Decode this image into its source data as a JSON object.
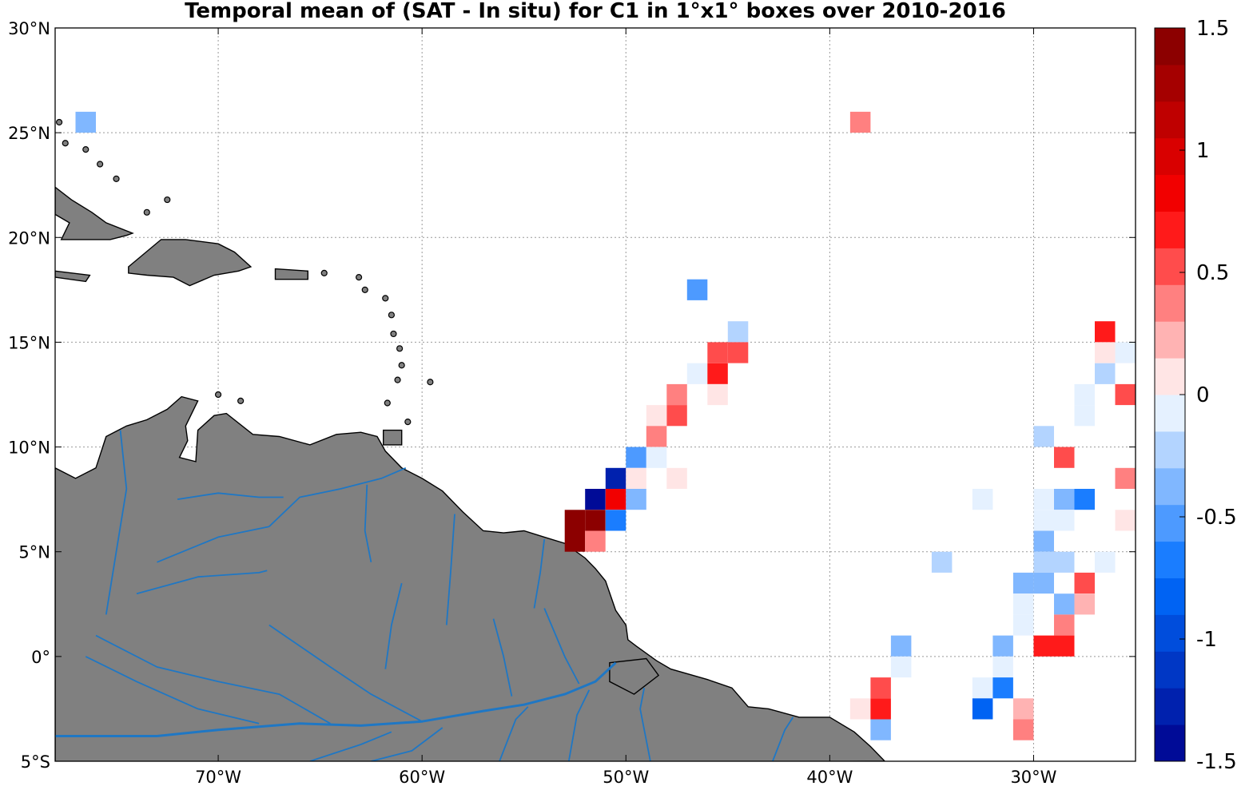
{
  "title": "Temporal mean of (SAT - In situ) for C1 in 1°x1° boxes over 2010-2016",
  "map": {
    "lon_range": [
      -78,
      -25
    ],
    "lat_range": [
      -5,
      30
    ],
    "lat_ticks": [
      {
        "value": 30,
        "label": "30°N"
      },
      {
        "value": 25,
        "label": "25°N"
      },
      {
        "value": 20,
        "label": "20°N"
      },
      {
        "value": 15,
        "label": "15°N"
      },
      {
        "value": 10,
        "label": "10°N"
      },
      {
        "value": 5,
        "label": "5°N"
      },
      {
        "value": 0,
        "label": "0°"
      },
      {
        "value": -5,
        "label": "5°S"
      }
    ],
    "lon_ticks": [
      {
        "value": -70,
        "label": "70°W"
      },
      {
        "value": -60,
        "label": "60°W"
      },
      {
        "value": -50,
        "label": "50°W"
      },
      {
        "value": -40,
        "label": "40°W"
      },
      {
        "value": -30,
        "label": "30°W"
      }
    ],
    "grid": true,
    "land_color": "#808080",
    "river_color": "#1f77c4",
    "coast_color": "#000000"
  },
  "colorbar": {
    "min": -1.5,
    "max": 1.5,
    "ticks": [
      {
        "value": 1.5,
        "label": "1.5"
      },
      {
        "value": 1,
        "label": "1"
      },
      {
        "value": 0.5,
        "label": "0.5"
      },
      {
        "value": 0,
        "label": "0"
      },
      {
        "value": -0.5,
        "label": "-0.5"
      },
      {
        "value": -1,
        "label": "-1"
      },
      {
        "value": -1.5,
        "label": "-1.5"
      }
    ],
    "negative_extreme_color": "#00008b",
    "positive_extreme_color": "#7f0000"
  },
  "chart_data": {
    "type": "heatmap",
    "cell_size_deg": 1,
    "cells": [
      {
        "lon": -77,
        "lat": 25,
        "v": -0.4
      },
      {
        "lon": -39,
        "lat": 25,
        "v": 0.3
      },
      {
        "lon": -47,
        "lat": 17,
        "v": -0.6
      },
      {
        "lon": -45,
        "lat": 15,
        "v": -0.2
      },
      {
        "lon": -46,
        "lat": 14,
        "v": 0.5
      },
      {
        "lon": -45,
        "lat": 14,
        "v": 0.5
      },
      {
        "lon": -47,
        "lat": 13,
        "v": -0.1
      },
      {
        "lon": -46,
        "lat": 13,
        "v": 0.6
      },
      {
        "lon": -46,
        "lat": 12,
        "v": 0.15
      },
      {
        "lon": -48,
        "lat": 12,
        "v": 0.3
      },
      {
        "lon": -48,
        "lat": 11,
        "v": 0.5
      },
      {
        "lon": -49,
        "lat": 11,
        "v": 0.15
      },
      {
        "lon": -49,
        "lat": 10,
        "v": 0.35
      },
      {
        "lon": -50,
        "lat": 9,
        "v": -0.5
      },
      {
        "lon": -49,
        "lat": 9,
        "v": -0.1
      },
      {
        "lon": -51,
        "lat": 8,
        "v": -1.3
      },
      {
        "lon": -50,
        "lat": 8,
        "v": 0.15
      },
      {
        "lon": -48,
        "lat": 8,
        "v": 0.15
      },
      {
        "lon": -52,
        "lat": 7,
        "v": -1.5
      },
      {
        "lon": -51,
        "lat": 7,
        "v": 0.8
      },
      {
        "lon": -50,
        "lat": 7,
        "v": -0.45
      },
      {
        "lon": -53,
        "lat": 6,
        "v": 1.5
      },
      {
        "lon": -52,
        "lat": 6,
        "v": 1.5
      },
      {
        "lon": -51,
        "lat": 6,
        "v": -0.75
      },
      {
        "lon": -53,
        "lat": 5,
        "v": 1.5
      },
      {
        "lon": -52,
        "lat": 5,
        "v": 0.4
      },
      {
        "lon": -35,
        "lat": 4,
        "v": -0.2
      },
      {
        "lon": -27,
        "lat": 15,
        "v": 0.65
      },
      {
        "lon": -27,
        "lat": 14,
        "v": 0.15
      },
      {
        "lon": -26,
        "lat": 14,
        "v": -0.1
      },
      {
        "lon": -27,
        "lat": 13,
        "v": -0.25
      },
      {
        "lon": -28,
        "lat": 12,
        "v": -0.1
      },
      {
        "lon": -26,
        "lat": 12,
        "v": 0.55
      },
      {
        "lon": -28,
        "lat": 11,
        "v": -0.1
      },
      {
        "lon": -30,
        "lat": 10,
        "v": -0.2
      },
      {
        "lon": -29,
        "lat": 9,
        "v": 0.55
      },
      {
        "lon": -26,
        "lat": 8,
        "v": 0.3
      },
      {
        "lon": -33,
        "lat": 7,
        "v": -0.1
      },
      {
        "lon": -30,
        "lat": 7,
        "v": -0.1
      },
      {
        "lon": -29,
        "lat": 7,
        "v": -0.3
      },
      {
        "lon": -28,
        "lat": 7,
        "v": -0.7
      },
      {
        "lon": -30,
        "lat": 6,
        "v": -0.1
      },
      {
        "lon": -29,
        "lat": 6,
        "v": -0.1
      },
      {
        "lon": -26,
        "lat": 6,
        "v": 0.15
      },
      {
        "lon": -30,
        "lat": 5,
        "v": -0.45
      },
      {
        "lon": -30,
        "lat": 4,
        "v": -0.2
      },
      {
        "lon": -29,
        "lat": 4,
        "v": -0.2
      },
      {
        "lon": -27,
        "lat": 4,
        "v": -0.1
      },
      {
        "lon": -31,
        "lat": 3,
        "v": -0.45
      },
      {
        "lon": -30,
        "lat": 3,
        "v": -0.45
      },
      {
        "lon": -28,
        "lat": 3,
        "v": 0.55
      },
      {
        "lon": -31,
        "lat": 2,
        "v": -0.1
      },
      {
        "lon": -29,
        "lat": 2,
        "v": -0.3
      },
      {
        "lon": -28,
        "lat": 2,
        "v": 0.2
      },
      {
        "lon": -31,
        "lat": 1,
        "v": -0.1
      },
      {
        "lon": -29,
        "lat": 1,
        "v": 0.3
      },
      {
        "lon": -30,
        "lat": 0,
        "v": 0.65
      },
      {
        "lon": -29,
        "lat": 0,
        "v": 0.65
      },
      {
        "lon": -37,
        "lat": 0,
        "v": -0.3
      },
      {
        "lon": -32,
        "lat": 0,
        "v": -0.3
      },
      {
        "lon": -37,
        "lat": -1,
        "v": -0.1
      },
      {
        "lon": -32,
        "lat": -1,
        "v": -0.1
      },
      {
        "lon": -38,
        "lat": -2,
        "v": 0.55
      },
      {
        "lon": -33,
        "lat": -2,
        "v": -0.1
      },
      {
        "lon": -32,
        "lat": -2,
        "v": -0.7
      },
      {
        "lon": -39,
        "lat": -3,
        "v": 0.15
      },
      {
        "lon": -38,
        "lat": -3,
        "v": 0.6
      },
      {
        "lon": -33,
        "lat": -3,
        "v": -0.8
      },
      {
        "lon": -31,
        "lat": -3,
        "v": 0.2
      },
      {
        "lon": -38,
        "lat": -4,
        "v": -0.45
      },
      {
        "lon": -31,
        "lat": -4,
        "v": 0.3
      }
    ]
  }
}
